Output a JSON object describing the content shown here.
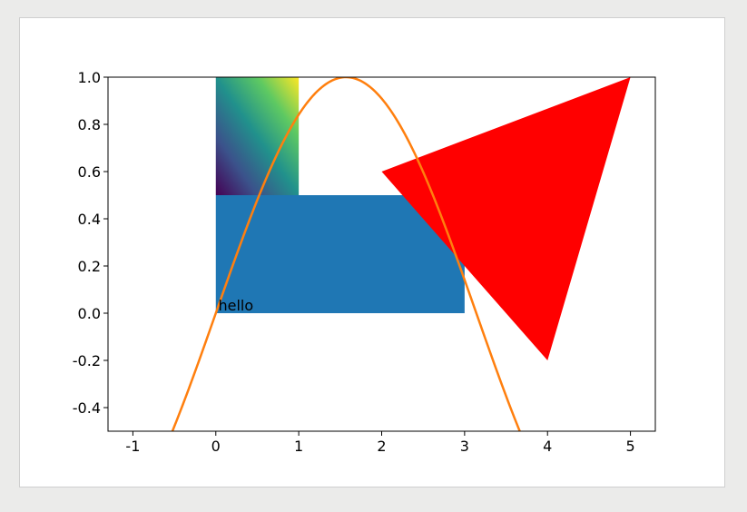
{
  "chart_data": {
    "type": "mixed",
    "title": "",
    "xlabel": "",
    "ylabel": "",
    "xlim": [
      -1.3,
      5.3
    ],
    "ylim": [
      -0.5,
      1.0
    ],
    "grid": false,
    "legend": "none",
    "xticks": [
      "-1",
      "0",
      "1",
      "2",
      "3",
      "4",
      "5"
    ],
    "yticks": [
      "1.0",
      "0.8",
      "0.6",
      "0.4",
      "0.2",
      "0.0",
      "-0.2",
      "-0.4"
    ],
    "image": {
      "extent": [
        0,
        1,
        0.5,
        1.0
      ],
      "colormap": [
        "#440154",
        "#3b528b",
        "#21918c",
        "#5ec962",
        "#fde725"
      ]
    },
    "rectangle": {
      "x": 0,
      "y": 0,
      "width": 3,
      "height": 0.5,
      "color": "#1f77b4"
    },
    "polygon": {
      "points": [
        [
          2,
          0.6
        ],
        [
          5,
          1.0
        ],
        [
          4,
          -0.2
        ]
      ],
      "color": "#ff0000"
    },
    "line": {
      "function": "sin(x)",
      "x_range": [
        -1,
        4
      ],
      "color": "#ff7f0e"
    },
    "annotation": {
      "text": "hello",
      "x": 0.03,
      "y": 0.0
    }
  }
}
